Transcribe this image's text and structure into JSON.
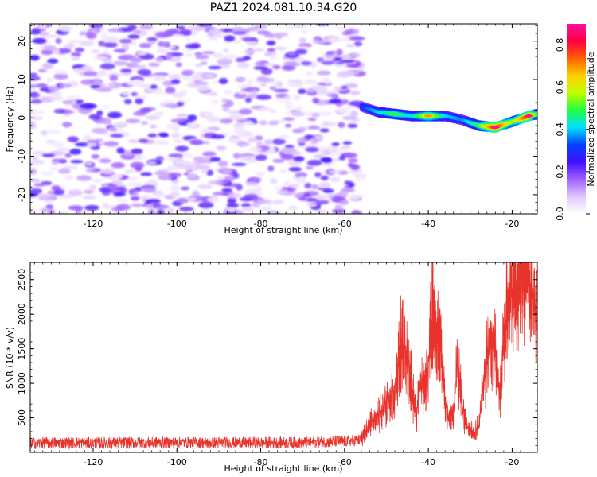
{
  "title": "PAZ1.2024.081.10.34.G20",
  "chart_data": [
    {
      "type": "heatmap",
      "title": "PAZ1.2024.081.10.34.G20",
      "xlabel": "Height of straight line (km)",
      "ylabel": "Frequency (Hz)",
      "xlim": [
        -135,
        -14
      ],
      "ylim": [
        -25,
        24.5
      ],
      "xticks": [
        -120,
        -100,
        -80,
        -60,
        -40,
        -20
      ],
      "yticks": [
        20,
        10,
        0,
        -10,
        -20
      ],
      "noise_region_x": [
        -135,
        -56
      ],
      "noise_amplitude_range": [
        0.0,
        0.22
      ],
      "signal_ridge": {
        "x": [
          -56,
          -52,
          -48,
          -44,
          -40,
          -36,
          -32,
          -28,
          -24,
          -20,
          -16,
          -14
        ],
        "frequency": [
          3,
          1.5,
          1,
          0.5,
          0.5,
          0.5,
          -0.5,
          -2,
          -2.5,
          -1,
          0.5,
          1
        ],
        "amplitude": [
          0.35,
          0.45,
          0.55,
          0.45,
          0.7,
          0.45,
          0.4,
          0.55,
          0.9,
          0.6,
          0.9,
          0.5
        ]
      },
      "colorbar": {
        "label": "Normalized spectral amplitude",
        "range": [
          0,
          0.9
        ],
        "ticks": [
          0.0,
          0.2,
          0.4,
          0.6,
          0.8
        ],
        "colormap": [
          "#ffffff",
          "#e0c8ff",
          "#a060ff",
          "#4010ff",
          "#0040ff",
          "#00e0ff",
          "#20ff40",
          "#c0ff00",
          "#ffd000",
          "#ff6000",
          "#ff0040",
          "#ff10a0"
        ]
      }
    },
    {
      "type": "line",
      "xlabel": "Height of straight line (km)",
      "ylabel": "SNR (10 * v/v)",
      "xlim": [
        -135,
        -14
      ],
      "ylim": [
        0,
        2750
      ],
      "xticks": [
        -120,
        -100,
        -80,
        -60,
        -40,
        -20
      ],
      "yticks": [
        500,
        1000,
        1500,
        2000,
        2500
      ],
      "series": [
        {
          "color": "#e8332c",
          "x": [
            -135,
            -130,
            -120,
            -110,
            -100,
            -90,
            -80,
            -70,
            -60,
            -56,
            -54,
            -52,
            -50,
            -48,
            -46.5,
            -45,
            -44,
            -43,
            -42,
            -41,
            -40,
            -39,
            -38,
            -37,
            -36,
            -35,
            -34,
            -33,
            -32,
            -31,
            -30,
            -29,
            -28,
            -27,
            -26,
            -25,
            -24,
            -23,
            -22,
            -21,
            -20,
            -19,
            -18,
            -17,
            -16,
            -15,
            -14
          ],
          "y": [
            130,
            140,
            135,
            140,
            140,
            140,
            140,
            140,
            160,
            180,
            400,
            550,
            700,
            900,
            1600,
            1400,
            1000,
            500,
            1050,
            900,
            1200,
            2150,
            1800,
            1500,
            700,
            500,
            600,
            1400,
            700,
            400,
            300,
            250,
            400,
            900,
            1400,
            1600,
            1500,
            800,
            1500,
            2100,
            2350,
            2500,
            2700,
            2600,
            2450,
            2200,
            2050
          ]
        }
      ]
    }
  ]
}
